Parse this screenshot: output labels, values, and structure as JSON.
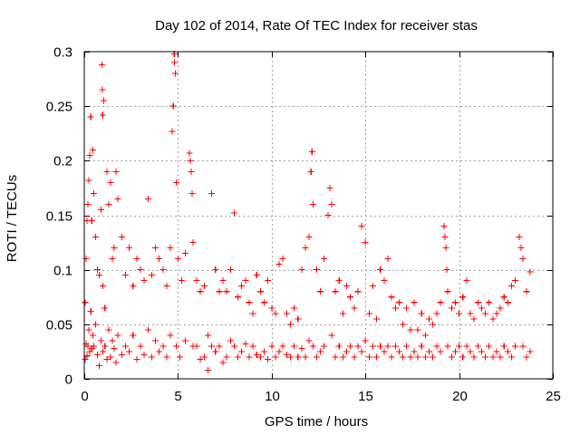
{
  "chart_data": {
    "type": "scatter",
    "title": "Day 102 of 2014, Rate Of TEC Index for receiver stas",
    "xlabel": "GPS time / hours",
    "ylabel": "ROTI / TECUs",
    "xlim": [
      0,
      25
    ],
    "ylim": [
      0,
      0.3
    ],
    "x_ticks": [
      0,
      5,
      10,
      15,
      20,
      25
    ],
    "x_tick_labels": [
      "0",
      "5",
      "10",
      "15",
      "20",
      "25"
    ],
    "y_ticks": [
      0,
      0.05,
      0.1,
      0.15,
      0.2,
      0.25,
      0.3
    ],
    "y_tick_labels": [
      "0",
      "0.05",
      "0.1",
      "0.15",
      "0.2",
      "0.25",
      "0.3"
    ],
    "grid": true,
    "marker": "+",
    "color": "#ff0000",
    "series": [
      {
        "name": "ROTI",
        "points": [
          [
            0.05,
            0.018
          ],
          [
            0.05,
            0.07
          ],
          [
            0.1,
            0.032
          ],
          [
            0.1,
            0.11
          ],
          [
            0.15,
            0.021
          ],
          [
            0.15,
            0.145
          ],
          [
            0.2,
            0.03
          ],
          [
            0.2,
            0.16
          ],
          [
            0.25,
            0.045
          ],
          [
            0.25,
            0.182
          ],
          [
            0.3,
            0.025
          ],
          [
            0.3,
            0.205
          ],
          [
            0.35,
            0.062
          ],
          [
            0.35,
            0.24
          ],
          [
            0.4,
            0.028
          ],
          [
            0.4,
            0.145
          ],
          [
            0.45,
            0.04
          ],
          [
            0.45,
            0.21
          ],
          [
            0.5,
            0.03
          ],
          [
            0.5,
            0.17
          ],
          [
            0.6,
            0.05
          ],
          [
            0.6,
            0.13
          ],
          [
            0.7,
            0.022
          ],
          [
            0.7,
            0.1
          ],
          [
            0.8,
            0.012
          ],
          [
            0.8,
            0.095
          ],
          [
            0.9,
            0.035
          ],
          [
            0.9,
            0.155
          ],
          [
            0.95,
            0.288
          ],
          [
            0.97,
            0.265
          ],
          [
            0.98,
            0.242
          ],
          [
            1.0,
            0.025
          ],
          [
            1.0,
            0.085
          ],
          [
            1.05,
            0.255
          ],
          [
            1.1,
            0.03
          ],
          [
            1.1,
            0.065
          ],
          [
            1.2,
            0.018
          ],
          [
            1.2,
            0.19
          ],
          [
            1.3,
            0.045
          ],
          [
            1.3,
            0.16
          ],
          [
            1.4,
            0.02
          ],
          [
            1.4,
            0.18
          ],
          [
            1.5,
            0.035
          ],
          [
            1.5,
            0.11
          ],
          [
            1.6,
            0.028
          ],
          [
            1.6,
            0.12
          ],
          [
            1.7,
            0.015
          ],
          [
            1.7,
            0.19
          ],
          [
            1.8,
            0.04
          ],
          [
            1.8,
            0.165
          ],
          [
            2.0,
            0.022
          ],
          [
            2.0,
            0.13
          ],
          [
            2.2,
            0.03
          ],
          [
            2.2,
            0.095
          ],
          [
            2.4,
            0.025
          ],
          [
            2.4,
            0.12
          ],
          [
            2.6,
            0.04
          ],
          [
            2.6,
            0.085
          ],
          [
            2.8,
            0.018
          ],
          [
            2.8,
            0.11
          ],
          [
            3.0,
            0.03
          ],
          [
            3.0,
            0.1
          ],
          [
            3.2,
            0.022
          ],
          [
            3.2,
            0.09
          ],
          [
            3.4,
            0.165
          ],
          [
            3.4,
            0.045
          ],
          [
            3.6,
            0.02
          ],
          [
            3.6,
            0.095
          ],
          [
            3.8,
            0.035
          ],
          [
            3.8,
            0.12
          ],
          [
            4.0,
            0.025
          ],
          [
            4.0,
            0.11
          ],
          [
            4.2,
            0.03
          ],
          [
            4.2,
            0.1
          ],
          [
            4.4,
            0.02
          ],
          [
            4.4,
            0.085
          ],
          [
            4.6,
            0.04
          ],
          [
            4.6,
            0.12
          ],
          [
            4.7,
            0.227
          ],
          [
            4.75,
            0.25
          ],
          [
            4.8,
            0.298
          ],
          [
            4.82,
            0.29
          ],
          [
            4.85,
            0.28
          ],
          [
            4.9,
            0.18
          ],
          [
            4.9,
            0.03
          ],
          [
            5.0,
            0.11
          ],
          [
            5.1,
            0.02
          ],
          [
            5.2,
            0.09
          ],
          [
            5.4,
            0.035
          ],
          [
            5.4,
            0.115
          ],
          [
            5.6,
            0.207
          ],
          [
            5.65,
            0.2
          ],
          [
            5.7,
            0.19
          ],
          [
            5.75,
            0.17
          ],
          [
            5.8,
            0.03
          ],
          [
            5.8,
            0.125
          ],
          [
            6.0,
            0.03
          ],
          [
            6.0,
            0.09
          ],
          [
            6.2,
            0.018
          ],
          [
            6.2,
            0.08
          ],
          [
            6.4,
            0.02
          ],
          [
            6.4,
            0.085
          ],
          [
            6.6,
            0.008
          ],
          [
            6.6,
            0.04
          ],
          [
            6.8,
            0.17
          ],
          [
            6.8,
            0.03
          ],
          [
            7.0,
            0.025
          ],
          [
            7.0,
            0.1
          ],
          [
            7.2,
            0.03
          ],
          [
            7.2,
            0.08
          ],
          [
            7.4,
            0.015
          ],
          [
            7.4,
            0.09
          ],
          [
            7.6,
            0.02
          ],
          [
            7.6,
            0.08
          ],
          [
            7.8,
            0.035
          ],
          [
            7.8,
            0.1
          ],
          [
            8.0,
            0.152
          ],
          [
            8.0,
            0.03
          ],
          [
            8.2,
            0.02
          ],
          [
            8.2,
            0.075
          ],
          [
            8.4,
            0.025
          ],
          [
            8.4,
            0.085
          ],
          [
            8.6,
            0.032
          ],
          [
            8.6,
            0.09
          ],
          [
            8.8,
            0.02
          ],
          [
            8.8,
            0.07
          ],
          [
            9.0,
            0.03
          ],
          [
            9.0,
            0.06
          ],
          [
            9.2,
            0.022
          ],
          [
            9.2,
            0.095
          ],
          [
            9.4,
            0.02
          ],
          [
            9.4,
            0.08
          ],
          [
            9.6,
            0.025
          ],
          [
            9.6,
            0.07
          ],
          [
            9.8,
            0.018
          ],
          [
            9.8,
            0.09
          ],
          [
            10.0,
            0.03
          ],
          [
            10.0,
            0.065
          ],
          [
            10.2,
            0.02
          ],
          [
            10.2,
            0.06
          ],
          [
            10.4,
            0.025
          ],
          [
            10.4,
            0.105
          ],
          [
            10.6,
            0.11
          ],
          [
            10.6,
            0.03
          ],
          [
            10.8,
            0.022
          ],
          [
            10.8,
            0.06
          ],
          [
            11.0,
            0.02
          ],
          [
            11.0,
            0.05
          ],
          [
            11.2,
            0.03
          ],
          [
            11.2,
            0.065
          ],
          [
            11.4,
            0.02
          ],
          [
            11.4,
            0.055
          ],
          [
            11.6,
            0.028
          ],
          [
            11.6,
            0.1
          ],
          [
            11.8,
            0.02
          ],
          [
            11.8,
            0.12
          ],
          [
            12.0,
            0.13
          ],
          [
            12.0,
            0.035
          ],
          [
            12.1,
            0.19
          ],
          [
            12.15,
            0.208
          ],
          [
            12.2,
            0.16
          ],
          [
            12.2,
            0.03
          ],
          [
            12.4,
            0.02
          ],
          [
            12.4,
            0.1
          ],
          [
            12.6,
            0.025
          ],
          [
            12.6,
            0.08
          ],
          [
            12.8,
            0.03
          ],
          [
            12.8,
            0.11
          ],
          [
            13.0,
            0.15
          ],
          [
            13.1,
            0.175
          ],
          [
            13.2,
            0.16
          ],
          [
            13.2,
            0.04
          ],
          [
            13.4,
            0.02
          ],
          [
            13.4,
            0.08
          ],
          [
            13.6,
            0.03
          ],
          [
            13.6,
            0.09
          ],
          [
            13.8,
            0.02
          ],
          [
            13.8,
            0.06
          ],
          [
            14.0,
            0.025
          ],
          [
            14.0,
            0.085
          ],
          [
            14.2,
            0.03
          ],
          [
            14.2,
            0.075
          ],
          [
            14.4,
            0.02
          ],
          [
            14.4,
            0.065
          ],
          [
            14.6,
            0.03
          ],
          [
            14.6,
            0.08
          ],
          [
            14.8,
            0.14
          ],
          [
            14.8,
            0.025
          ],
          [
            15.0,
            0.125
          ],
          [
            15.0,
            0.035
          ],
          [
            15.2,
            0.02
          ],
          [
            15.2,
            0.06
          ],
          [
            15.4,
            0.03
          ],
          [
            15.4,
            0.085
          ],
          [
            15.6,
            0.02
          ],
          [
            15.6,
            0.055
          ],
          [
            15.8,
            0.03
          ],
          [
            15.8,
            0.1
          ],
          [
            16.0,
            0.025
          ],
          [
            16.0,
            0.09
          ],
          [
            16.2,
            0.11
          ],
          [
            16.2,
            0.03
          ],
          [
            16.4,
            0.02
          ],
          [
            16.4,
            0.075
          ],
          [
            16.6,
            0.03
          ],
          [
            16.6,
            0.065
          ],
          [
            16.8,
            0.025
          ],
          [
            16.8,
            0.07
          ],
          [
            17.0,
            0.02
          ],
          [
            17.0,
            0.05
          ],
          [
            17.2,
            0.03
          ],
          [
            17.2,
            0.065
          ],
          [
            17.4,
            0.02
          ],
          [
            17.4,
            0.045
          ],
          [
            17.6,
            0.025
          ],
          [
            17.6,
            0.07
          ],
          [
            17.8,
            0.02
          ],
          [
            17.8,
            0.045
          ],
          [
            18.0,
            0.03
          ],
          [
            18.0,
            0.06
          ],
          [
            18.2,
            0.02
          ],
          [
            18.2,
            0.04
          ],
          [
            18.4,
            0.025
          ],
          [
            18.4,
            0.055
          ],
          [
            18.6,
            0.02
          ],
          [
            18.6,
            0.05
          ],
          [
            18.8,
            0.03
          ],
          [
            18.8,
            0.06
          ],
          [
            19.0,
            0.025
          ],
          [
            19.0,
            0.07
          ],
          [
            19.2,
            0.14
          ],
          [
            19.25,
            0.13
          ],
          [
            19.3,
            0.12
          ],
          [
            19.35,
            0.1
          ],
          [
            19.4,
            0.08
          ],
          [
            19.4,
            0.03
          ],
          [
            19.6,
            0.02
          ],
          [
            19.6,
            0.065
          ],
          [
            19.8,
            0.025
          ],
          [
            19.8,
            0.07
          ],
          [
            20.0,
            0.03
          ],
          [
            20.0,
            0.06
          ],
          [
            20.2,
            0.02
          ],
          [
            20.2,
            0.075
          ],
          [
            20.4,
            0.03
          ],
          [
            20.4,
            0.09
          ],
          [
            20.6,
            0.025
          ],
          [
            20.6,
            0.06
          ],
          [
            20.8,
            0.02
          ],
          [
            20.8,
            0.055
          ],
          [
            21.0,
            0.03
          ],
          [
            21.0,
            0.07
          ],
          [
            21.2,
            0.025
          ],
          [
            21.2,
            0.065
          ],
          [
            21.4,
            0.02
          ],
          [
            21.4,
            0.06
          ],
          [
            21.6,
            0.03
          ],
          [
            21.6,
            0.07
          ],
          [
            21.8,
            0.02
          ],
          [
            21.8,
            0.055
          ],
          [
            22.0,
            0.025
          ],
          [
            22.0,
            0.06
          ],
          [
            22.2,
            0.02
          ],
          [
            22.2,
            0.065
          ],
          [
            22.4,
            0.03
          ],
          [
            22.4,
            0.075
          ],
          [
            22.6,
            0.025
          ],
          [
            22.6,
            0.07
          ],
          [
            22.8,
            0.02
          ],
          [
            22.8,
            0.085
          ],
          [
            23.0,
            0.03
          ],
          [
            23.0,
            0.09
          ],
          [
            23.2,
            0.13
          ],
          [
            23.3,
            0.12
          ],
          [
            23.4,
            0.11
          ],
          [
            23.4,
            0.03
          ],
          [
            23.6,
            0.02
          ],
          [
            23.6,
            0.08
          ],
          [
            23.8,
            0.025
          ],
          [
            23.8,
            0.098
          ]
        ]
      }
    ]
  }
}
